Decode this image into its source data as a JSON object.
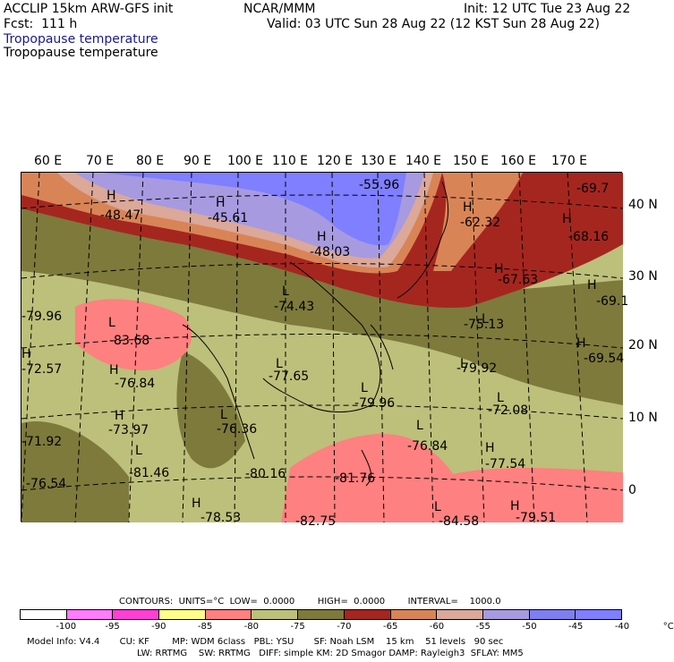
{
  "header": {
    "model": "ACCLIP 15km ARW-GFS init",
    "org": "NCAR/MMM",
    "init": "Init: 12 UTC Tue 23 Aug 22",
    "fcst": "Fcst:  111 h",
    "valid": "Valid: 03 UTC Sun 28 Aug 22 (12 KST Sun 28 Aug 22)",
    "field_a": "Tropopause temperature",
    "field_b": "Tropopause temperature"
  },
  "axes": {
    "lon_labels": [
      "60 E",
      "70 E",
      "80 E",
      "90 E",
      "100 E",
      "110 E",
      "120 E",
      "130 E",
      "140 E",
      "150 E",
      "160 E",
      "170 E"
    ],
    "lat_labels": [
      "40 N",
      "30 N",
      "20 N",
      "10 N",
      "0"
    ]
  },
  "map_labels": {
    "highs_lows": [
      "H",
      "H",
      "H",
      "H",
      "H",
      "H",
      "H",
      "H",
      "H",
      "H",
      "H",
      "H",
      "H",
      "H",
      "L",
      "L",
      "L",
      "L",
      "L",
      "L",
      "L",
      "L",
      "L",
      "L",
      "L"
    ],
    "values": [
      "-55.96",
      "-69.7",
      "-48.47",
      "-45.61",
      "-62.32",
      "-68.16",
      "-48.03",
      "-67.63",
      "-74.43",
      "-69.1",
      "-79.96",
      "-75.13",
      "-83.68",
      "-69.54",
      "-72.57",
      "-79.92",
      "-77.65",
      "-76.84",
      "-79.96",
      "-72.08",
      "-73.97",
      "-76.84",
      "-71.92",
      "-76.36",
      "-77.54",
      "-81.46",
      "-80.16",
      "-81.76",
      "-76.54",
      "-78.53",
      "-82.75",
      "-84.58",
      "-79.51"
    ]
  },
  "footer": {
    "contours": "CONTOURS:  UNITS=°C  LOW=  0.0000        HIGH=  0.0000        INTERVAL=    1000.0",
    "colorbar_ticks": [
      "-100",
      "-95",
      "-90",
      "-85",
      "-80",
      "-75",
      "-70",
      "-65",
      "-60",
      "-55",
      "-50",
      "-45",
      "-40",
      "°C"
    ],
    "colorbar_colors": [
      "#ffffff",
      "#ff7bff",
      "#ff3fd6",
      "#ffff88",
      "#ff8080",
      "#bcc07a",
      "#7d7a3c",
      "#a5261f",
      "#d98457",
      "#dba89a",
      "#a79ae0",
      "#7e7ef2",
      "#7f7fff"
    ],
    "info_line1": "Model Info: V4.4       CU: KF        MP: WDM 6class   PBL: YSU       SF: Noah LSM    15 km    51 levels   90 sec",
    "info_line2": "LW: RRTMG    SW: RRTMG   DIFF: simple KM: 2D Smagor DAMP: Rayleigh3  SFLAY: MM5"
  }
}
